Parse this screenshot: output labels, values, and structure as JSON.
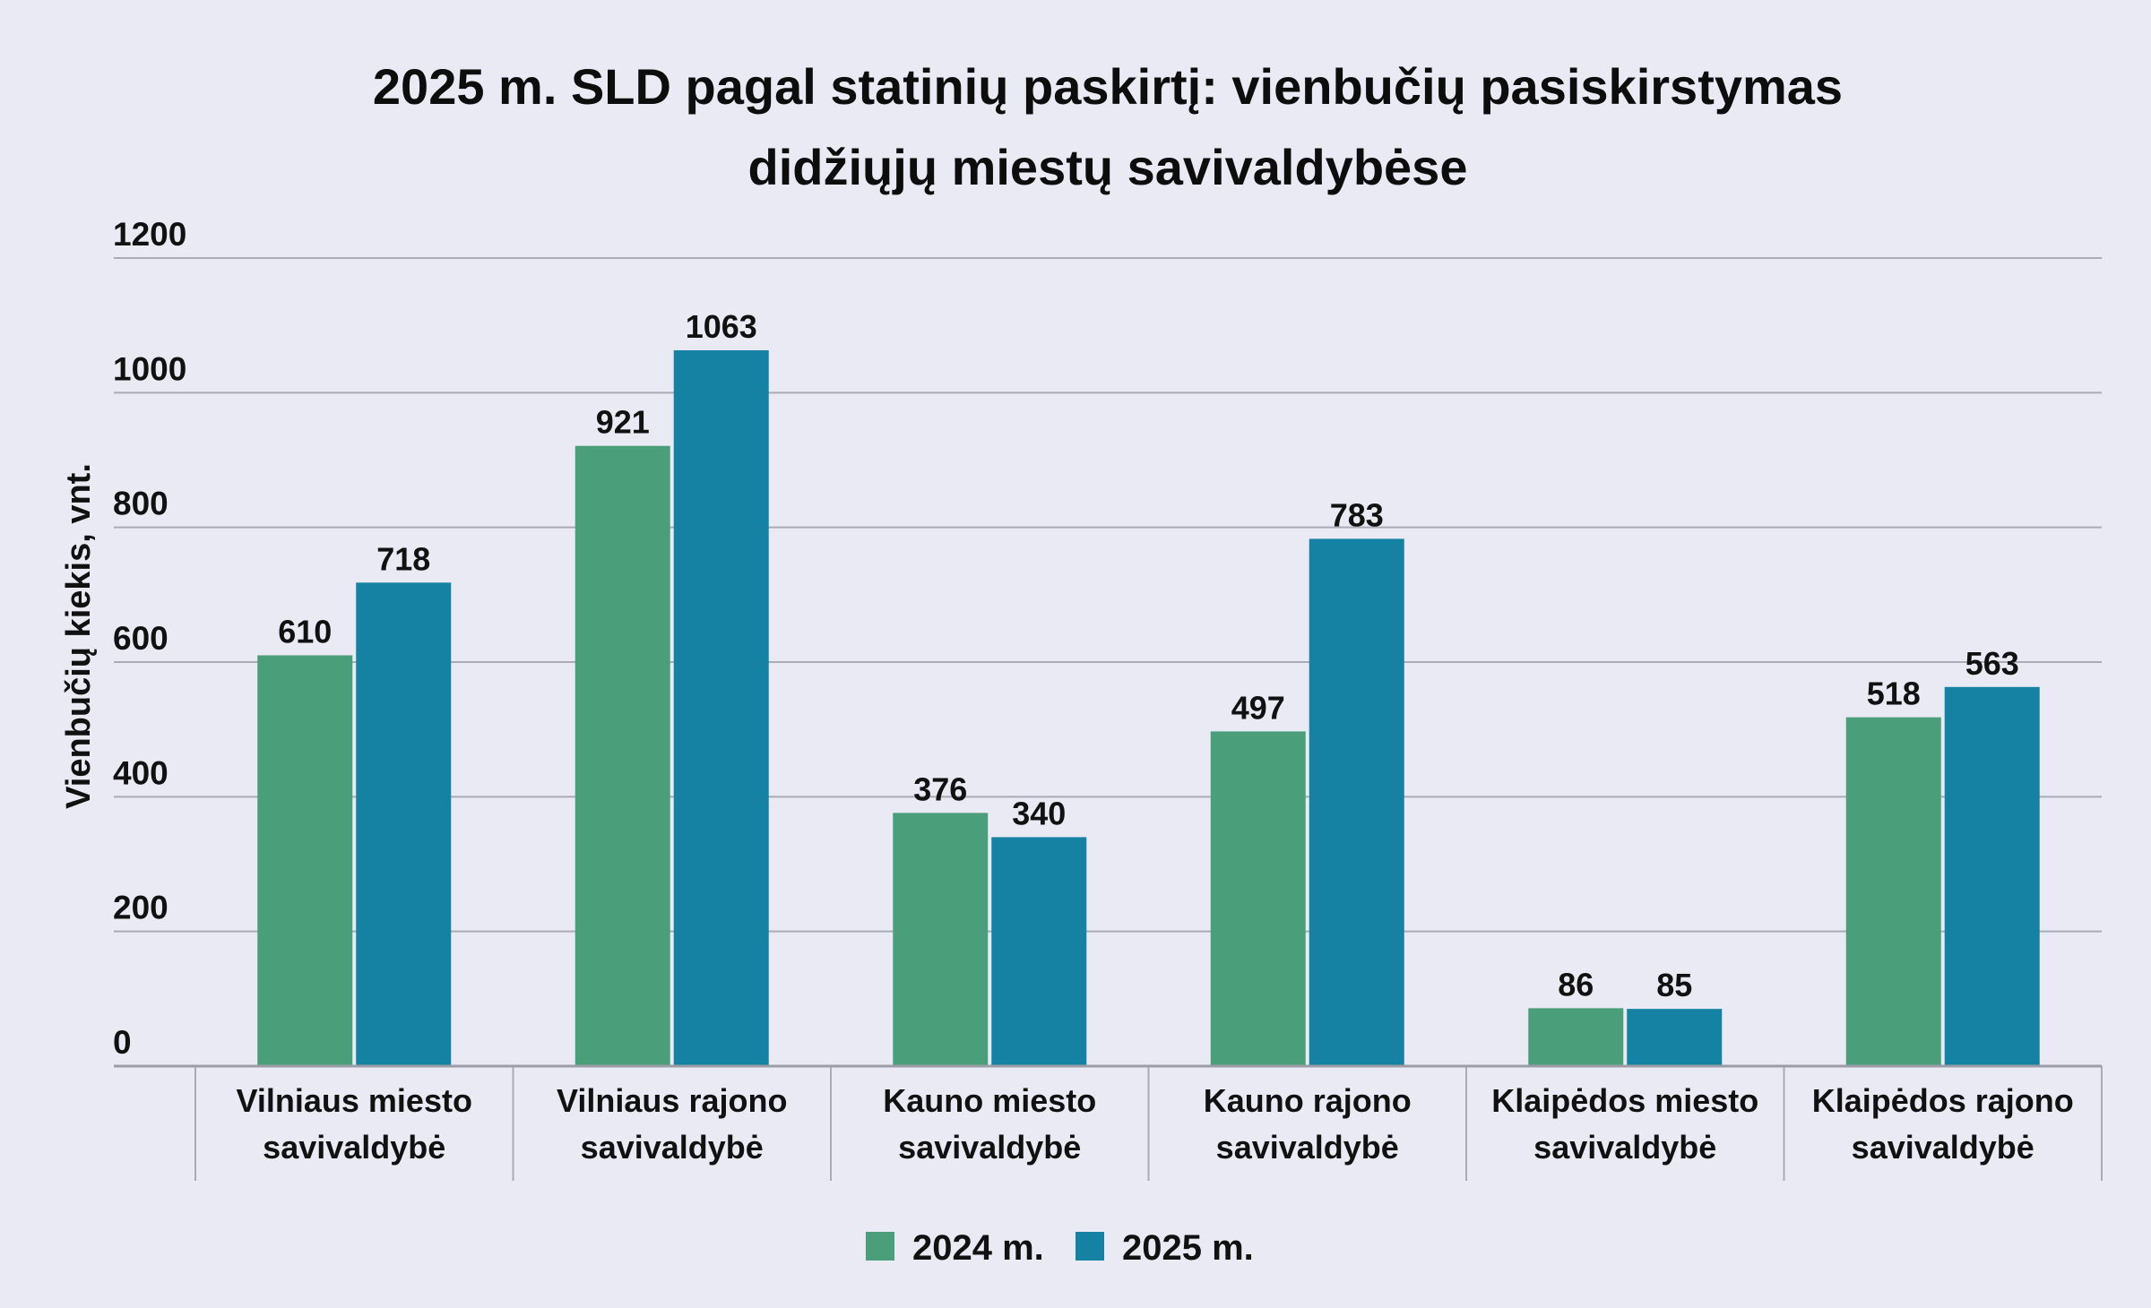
{
  "chart_data": {
    "type": "bar",
    "title_lines": [
      "2025 m. SLD pagal statinių paskirtį: vienbučių pasiskirstymas",
      "didžiųjų miestų savivaldybėse"
    ],
    "categories": [
      [
        "Vilniaus miesto",
        "savivaldybė"
      ],
      [
        "Vilniaus rajono",
        "savivaldybė"
      ],
      [
        "Kauno miesto",
        "savivaldybė"
      ],
      [
        "Kauno rajono",
        "savivaldybė"
      ],
      [
        "Klaipėdos miesto",
        "savivaldybė"
      ],
      [
        "Klaipėdos rajono",
        "savivaldybė"
      ]
    ],
    "series": [
      {
        "name": "2024 m.",
        "color": "#4a9f7a",
        "values": [
          610,
          921,
          376,
          497,
          86,
          518
        ]
      },
      {
        "name": "2025 m.",
        "color": "#1682a3",
        "values": [
          718,
          1063,
          340,
          783,
          85,
          563
        ]
      }
    ],
    "ylabel": "Vienbučių kiekis, vnt.",
    "xlabel": "",
    "ylim": [
      0,
      1200
    ],
    "yticks": [
      0,
      200,
      400,
      600,
      800,
      1000,
      1200
    ],
    "grid": true,
    "legend_position": "bottom-center"
  }
}
